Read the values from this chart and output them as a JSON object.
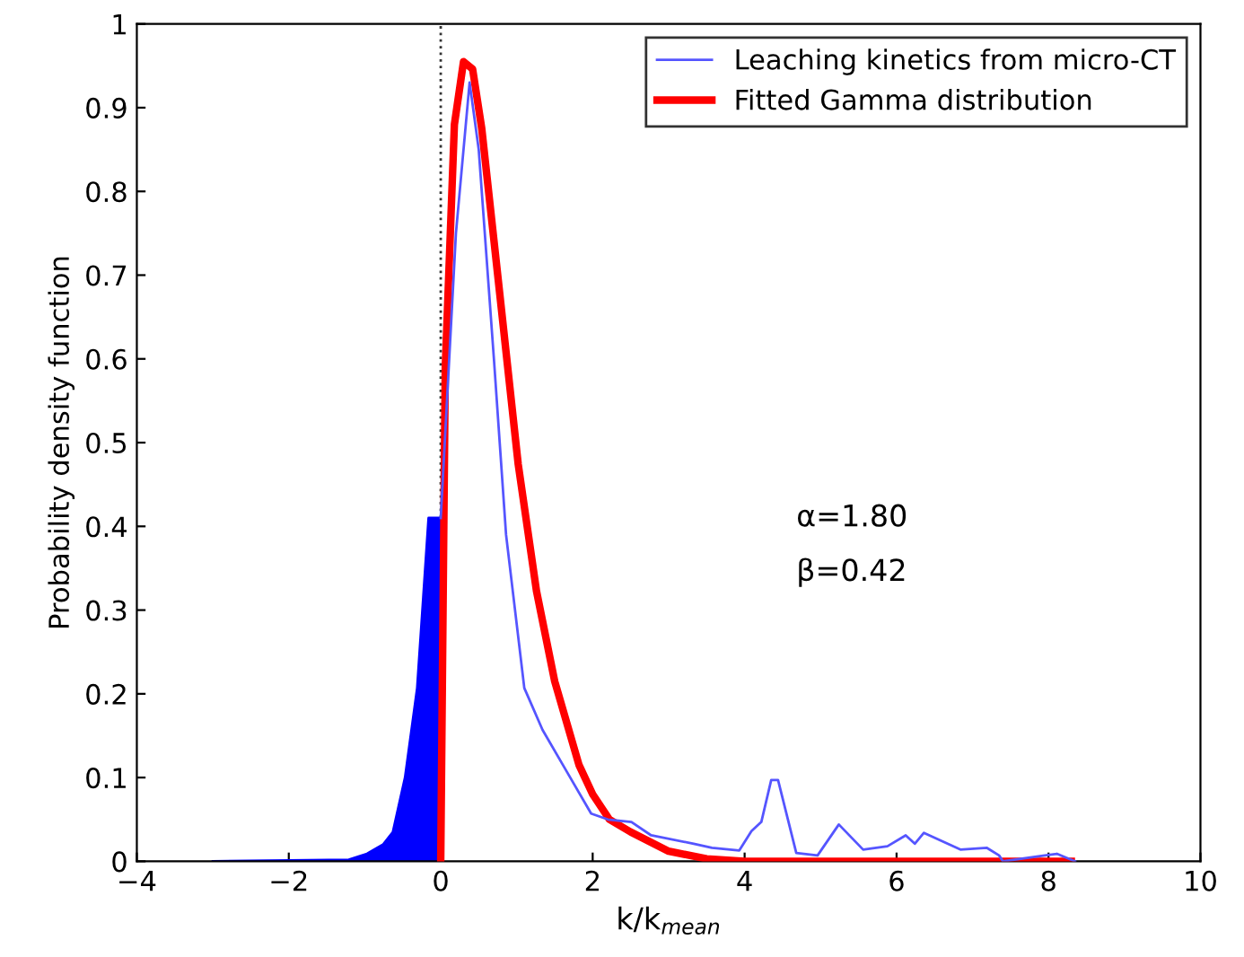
{
  "chart_data": {
    "type": "line",
    "xlabel": "k/k$_{mean}$",
    "ylabel": "Probability density function",
    "xlim": [
      -4,
      10
    ],
    "ylim": [
      0,
      1
    ],
    "xticks": [
      -4,
      -2,
      0,
      2,
      4,
      6,
      8,
      10
    ],
    "yticks": [
      0,
      0.1,
      0.2,
      0.3,
      0.4,
      0.5,
      0.6,
      0.7,
      0.8,
      0.9,
      1
    ],
    "grid": false,
    "legend": "top right",
    "marker": "none",
    "ref_lines": [
      {
        "axis": "x",
        "value": 0,
        "color": "#333333",
        "line_style": "dotted"
      }
    ],
    "annotations": [
      "α=1.80",
      "β=0.42"
    ],
    "series": [
      {
        "type": "area",
        "color": "#0000ff",
        "x": [
          -3,
          -2,
          -1.21,
          -0.97,
          -0.76,
          -0.63,
          -0.47,
          -0.31,
          -0.23,
          -0.16,
          0
        ],
        "values": [
          0,
          0.001,
          0.002,
          0.009,
          0.02,
          0.035,
          0.1,
          0.207,
          0.315,
          0.41,
          0.41
        ]
      },
      {
        "name": "Leaching kinetics from micro-CT",
        "color": "#5555ff",
        "x": [
          0,
          0.2,
          0.38,
          0.5,
          0.7,
          0.86,
          1.1,
          1.34,
          1.66,
          1.98,
          2.2,
          2.51,
          2.77,
          3.33,
          3.57,
          3.93,
          4.09,
          4.22,
          4.35,
          4.44,
          4.68,
          4.96,
          5.24,
          5.56,
          5.88,
          6.12,
          6.24,
          6.36,
          6.84,
          7.19,
          7.35,
          7.4,
          7.95,
          8.11,
          8.35
        ],
        "values": [
          0.41,
          0.75,
          0.93,
          0.85,
          0.6,
          0.39,
          0.207,
          0.157,
          0.107,
          0.057,
          0.05,
          0.047,
          0.031,
          0.021,
          0.016,
          0.013,
          0.036,
          0.047,
          0.097,
          0.097,
          0.01,
          0.007,
          0.044,
          0.014,
          0.018,
          0.031,
          0.021,
          0.034,
          0.014,
          0.016,
          0.007,
          0,
          0.007,
          0.009,
          0
        ]
      },
      {
        "name": "Fitted Gamma distribution",
        "color": "#ff0000",
        "x": [
          0,
          0.06,
          0.18,
          0.3,
          0.42,
          0.54,
          0.78,
          1.02,
          1.26,
          1.5,
          1.82,
          2.0,
          2.22,
          2.5,
          3.0,
          3.5,
          4.0,
          8.3
        ],
        "values": [
          0,
          0.59,
          0.88,
          0.955,
          0.946,
          0.875,
          0.675,
          0.474,
          0.323,
          0.215,
          0.115,
          0.08,
          0.05,
          0.035,
          0.012,
          0.003,
          0,
          0
        ]
      }
    ]
  }
}
